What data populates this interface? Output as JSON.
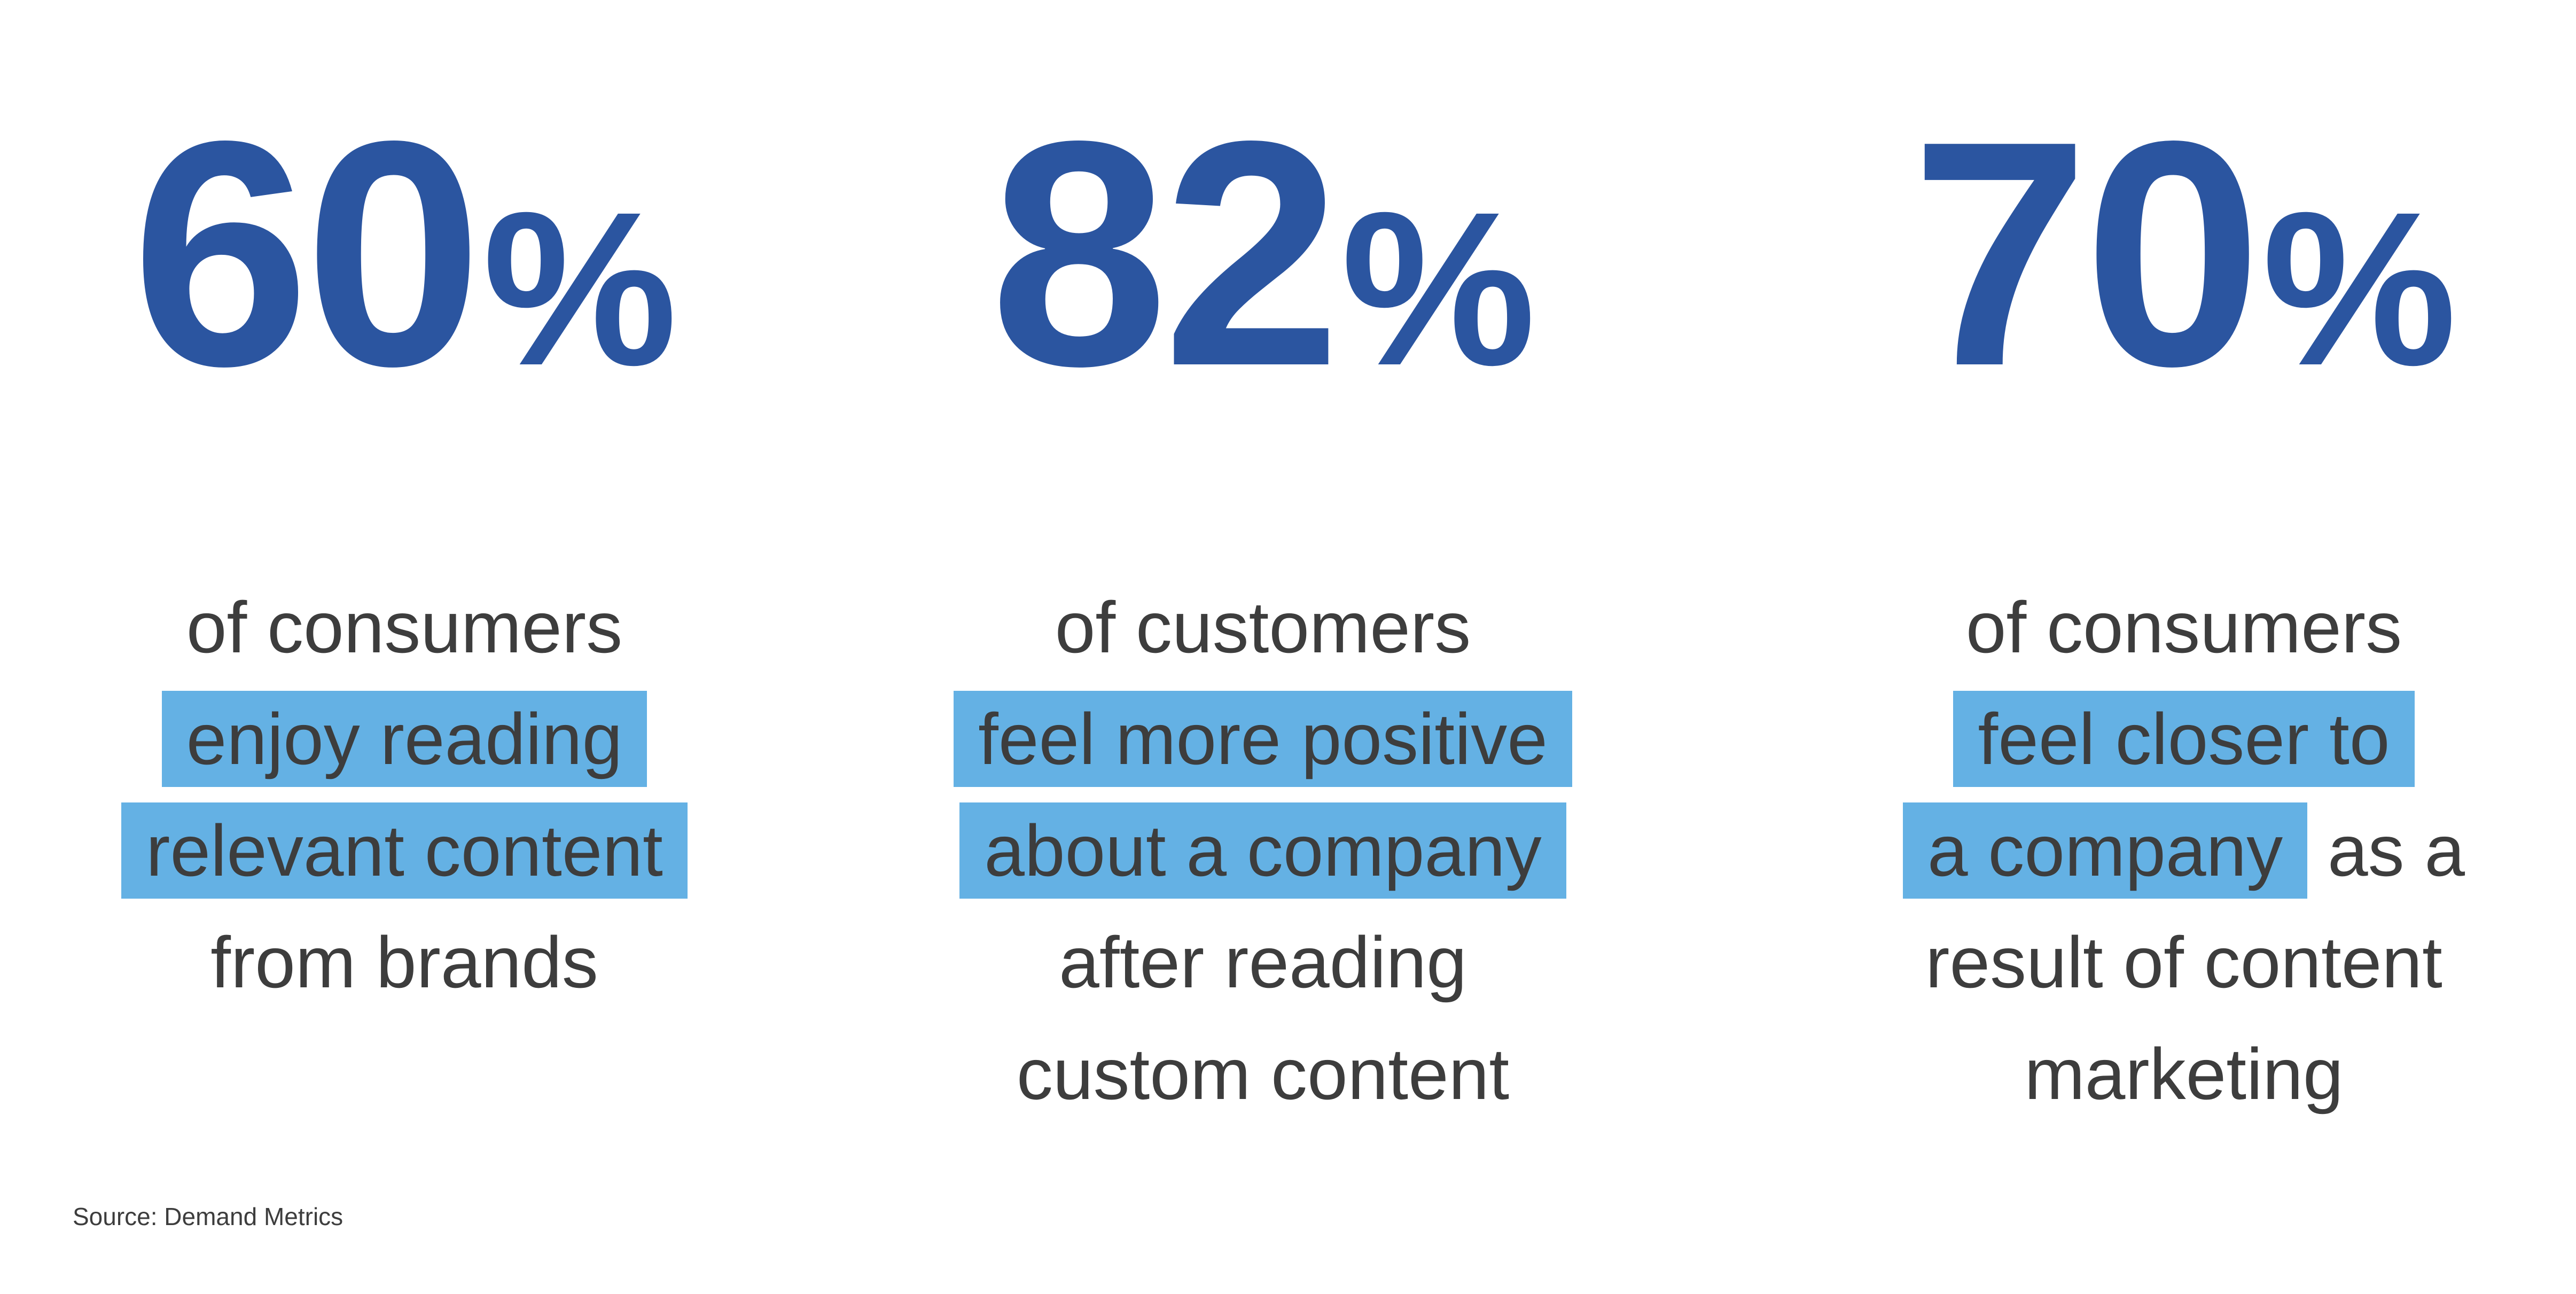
{
  "stats": [
    {
      "number": "60",
      "unit": "%",
      "lines": [
        [
          {
            "text": "of consumers",
            "highlight": false
          }
        ],
        [
          {
            "text": "enjoy reading",
            "highlight": true
          }
        ],
        [
          {
            "text": "relevant content",
            "highlight": true
          }
        ],
        [
          {
            "text": "from brands",
            "highlight": false
          }
        ]
      ]
    },
    {
      "number": "82",
      "unit": "%",
      "lines": [
        [
          {
            "text": "of customers",
            "highlight": false
          }
        ],
        [
          {
            "text": "feel more positive",
            "highlight": true
          }
        ],
        [
          {
            "text": "about a company",
            "highlight": true
          }
        ],
        [
          {
            "text": "after reading",
            "highlight": false
          }
        ],
        [
          {
            "text": "custom content",
            "highlight": false
          }
        ]
      ]
    },
    {
      "number": "70",
      "unit": "%",
      "lines": [
        [
          {
            "text": "of consumers",
            "highlight": false
          }
        ],
        [
          {
            "text": "feel closer to",
            "highlight": true
          }
        ],
        [
          {
            "text": "a company",
            "highlight": true
          },
          {
            "text": " as a",
            "highlight": false
          }
        ],
        [
          {
            "text": "result of content",
            "highlight": false
          }
        ],
        [
          {
            "text": "marketing",
            "highlight": false
          }
        ]
      ]
    }
  ],
  "source": "Source: Demand Metrics"
}
